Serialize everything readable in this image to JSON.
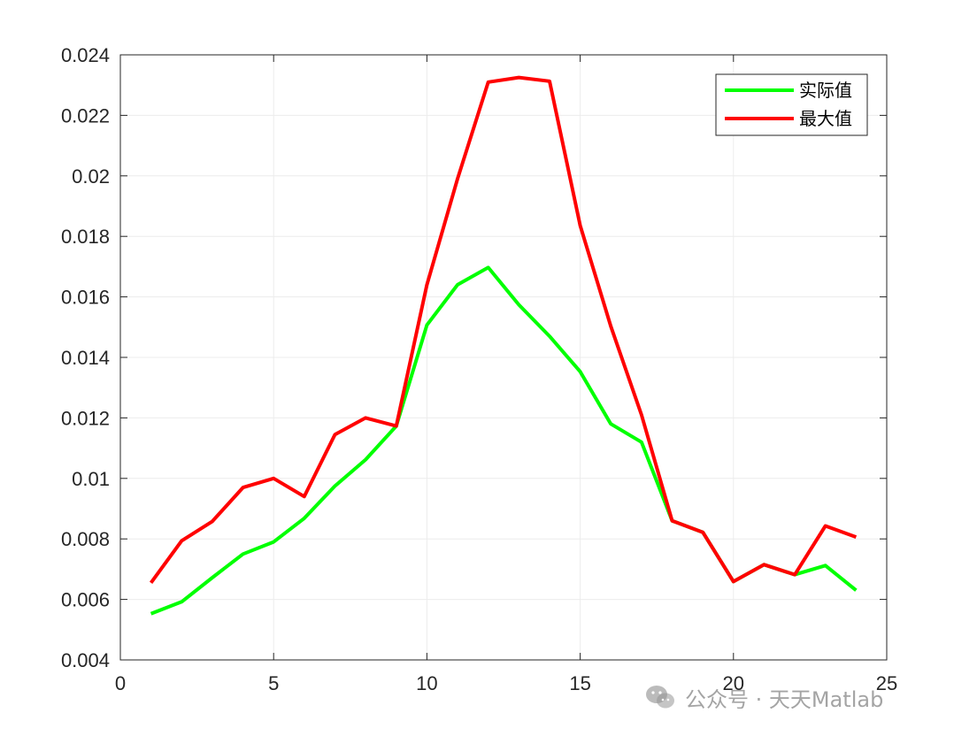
{
  "chart_data": {
    "type": "line",
    "title": "",
    "xlabel": "",
    "ylabel": "",
    "xlim": [
      0,
      25
    ],
    "ylim": [
      0.004,
      0.024
    ],
    "x_ticks": [
      0,
      5,
      10,
      15,
      20,
      25
    ],
    "y_ticks": [
      0.004,
      0.006,
      0.008,
      0.01,
      0.012,
      0.014,
      0.016,
      0.018,
      0.02,
      0.022,
      0.024
    ],
    "x_tick_labels": [
      "0",
      "5",
      "10",
      "15",
      "20",
      "25"
    ],
    "y_tick_labels": [
      "0.004",
      "0.006",
      "0.008",
      "0.01",
      "0.012",
      "0.014",
      "0.016",
      "0.018",
      "0.02",
      "0.022",
      "0.024"
    ],
    "grid": true,
    "legend_position": "top-right",
    "x": [
      1,
      2,
      3,
      4,
      5,
      6,
      7,
      8,
      9,
      10,
      11,
      12,
      13,
      14,
      15,
      16,
      17,
      18,
      19,
      20,
      21,
      22,
      23,
      24
    ],
    "series": [
      {
        "name": "实际值",
        "color": "#00ff00",
        "values": [
          0.00553,
          0.00592,
          0.00672,
          0.0075,
          0.0079,
          0.00868,
          0.00975,
          0.01062,
          0.01173,
          0.01507,
          0.0164,
          0.01697,
          0.01574,
          0.0147,
          0.01353,
          0.0118,
          0.0112,
          0.0086,
          0.00822,
          0.00659,
          0.00715,
          0.00682,
          0.00712,
          0.0063
        ]
      },
      {
        "name": "最大值",
        "color": "#ff0000",
        "values": [
          0.00655,
          0.00794,
          0.00858,
          0.0097,
          0.01,
          0.0094,
          0.01145,
          0.012,
          0.01173,
          0.0164,
          0.0199,
          0.0231,
          0.02325,
          0.02313,
          0.01836,
          0.01503,
          0.0121,
          0.0086,
          0.00822,
          0.00659,
          0.00715,
          0.00682,
          0.00843,
          0.00806
        ]
      }
    ]
  },
  "watermark": {
    "text": "公众号 · 天天Matlab",
    "icon": "wechat-icon"
  }
}
